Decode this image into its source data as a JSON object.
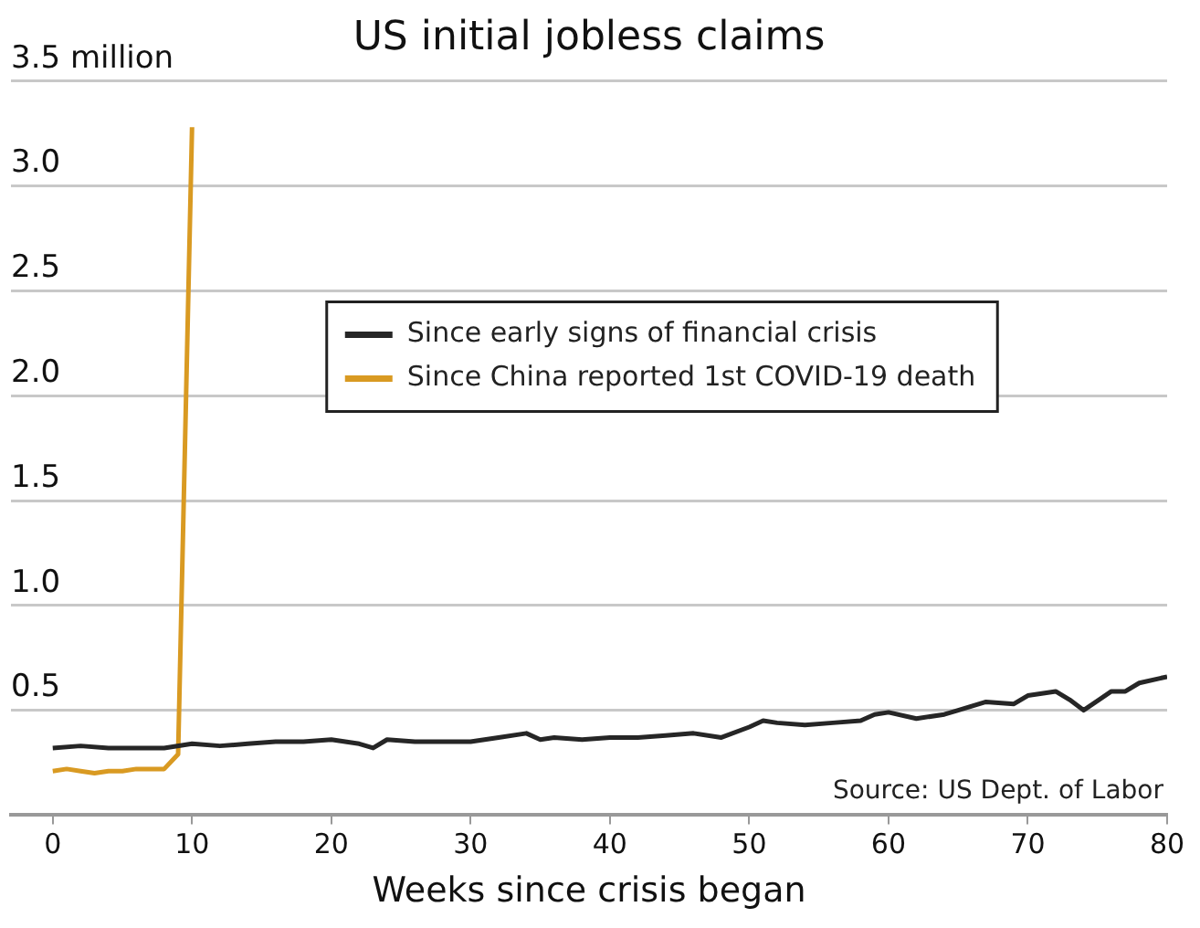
{
  "chart_data": {
    "type": "line",
    "title": "US initial jobless claims",
    "xlabel": "Weeks since crisis began",
    "series": [
      {
        "name": "Since early signs of financial crisis",
        "color": "#262626",
        "x": [
          0,
          2,
          4,
          6,
          8,
          10,
          12,
          14,
          16,
          18,
          20,
          22,
          23,
          24,
          26,
          28,
          30,
          32,
          34,
          35,
          36,
          38,
          40,
          42,
          44,
          46,
          48,
          50,
          51,
          52,
          54,
          56,
          58,
          59,
          60,
          62,
          64,
          65,
          67,
          69,
          70,
          72,
          73,
          74,
          76,
          77,
          78,
          80
        ],
        "values": [
          0.32,
          0.33,
          0.32,
          0.32,
          0.32,
          0.34,
          0.33,
          0.34,
          0.35,
          0.35,
          0.36,
          0.34,
          0.32,
          0.36,
          0.35,
          0.35,
          0.35,
          0.37,
          0.39,
          0.36,
          0.37,
          0.36,
          0.37,
          0.37,
          0.38,
          0.39,
          0.37,
          0.42,
          0.45,
          0.44,
          0.43,
          0.44,
          0.45,
          0.48,
          0.49,
          0.46,
          0.48,
          0.5,
          0.54,
          0.53,
          0.57,
          0.59,
          0.55,
          0.5,
          0.59,
          0.59,
          0.63,
          0.66
        ]
      },
      {
        "name": "Since China reported 1st COVID-19 death",
        "color": "#d99a22",
        "x": [
          0,
          1,
          2,
          3,
          4,
          5,
          6,
          7,
          8,
          9,
          10
        ],
        "values": [
          0.21,
          0.22,
          0.21,
          0.2,
          0.21,
          0.21,
          0.22,
          0.22,
          0.22,
          0.29,
          3.28
        ]
      }
    ],
    "xlim": [
      -3,
      80
    ],
    "xticks": [
      0,
      10,
      20,
      30,
      40,
      50,
      60,
      70,
      80
    ],
    "ylim": [
      0,
      3.5
    ],
    "yticks": [
      0.5,
      {
        "value": 1,
        "label": "1.0"
      },
      1.5,
      {
        "value": 2,
        "label": "2.0"
      },
      2.5,
      {
        "value": 3,
        "label": "3.0"
      },
      {
        "value": 3.5,
        "label": "3.5 million"
      }
    ],
    "grid": "y",
    "legend": "center",
    "marker": "none",
    "line_style": "solid",
    "annotations": [
      "Source: US Dept. of Labor"
    ]
  }
}
